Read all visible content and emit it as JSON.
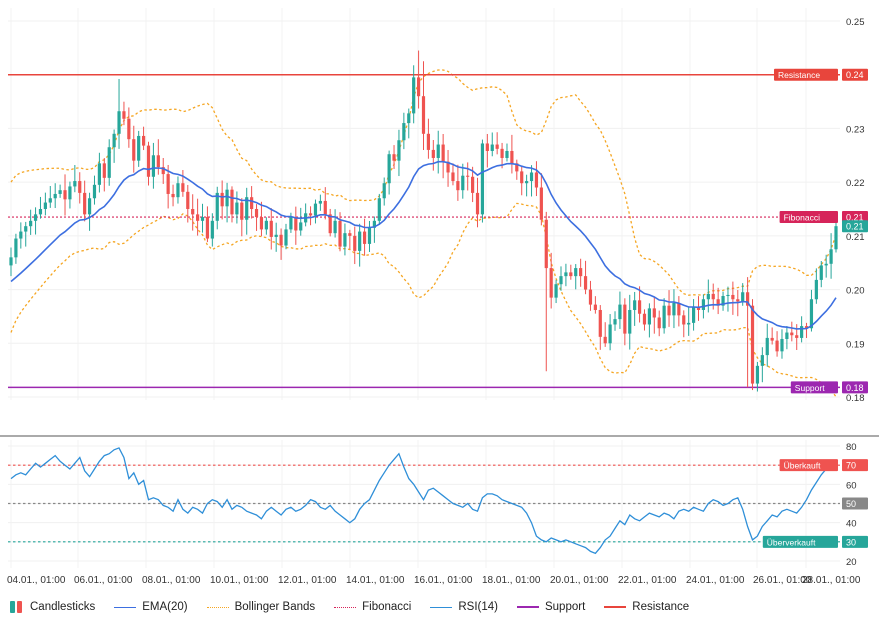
{
  "chart_data": {
    "type": "candlestick",
    "price_axis": {
      "ylim": [
        0.18,
        0.25
      ],
      "ticks": [
        "0.25",
        "0.24",
        "0.23",
        "0.22",
        "0.21",
        "0.20",
        "0.19",
        "0.18"
      ]
    },
    "rsi_axis": {
      "ylim": [
        20,
        80
      ],
      "ticks": [
        "80",
        "70",
        "60",
        "50",
        "40",
        "30",
        "20"
      ]
    },
    "x_ticks": [
      "04.01., 01:00",
      "06.01., 01:00",
      "08.01., 01:00",
      "10.01., 01:00",
      "12.01., 01:00",
      "14.01., 01:00",
      "16.01., 01:00",
      "18.01., 01:00",
      "20.01., 01:00",
      "22.01., 01:00",
      "24.01., 01:00",
      "26.01., 01:00",
      "28.01., 01:00"
    ],
    "levels": {
      "resistance": {
        "label": "Resistance",
        "value": 0.24,
        "value_text": "0.24",
        "color": "#e8453c"
      },
      "fibonacci": {
        "label": "Fibonacci",
        "value": 0.2135,
        "value_text": "0.21",
        "color": "#d6245a"
      },
      "support": {
        "label": "Support",
        "value": 0.1818,
        "value_text": "0.18",
        "color": "#9c27b0"
      },
      "last_price": {
        "value": 0.2118,
        "value_text": "0.21",
        "color": "#26a69a"
      }
    },
    "rsi_levels": {
      "overbought": {
        "label": "Überkauft",
        "value": 70,
        "value_text": "70",
        "color": "#ef5350"
      },
      "middle": {
        "value": 50,
        "value_text": "50",
        "color": "#888888"
      },
      "oversold": {
        "label": "Überverkauft",
        "value": 30,
        "value_text": "30",
        "color": "#26a69a"
      }
    },
    "colors": {
      "up": "#26a69a",
      "down": "#ef5350",
      "ema": "#3d6fe0",
      "bollinger": "#f5a623",
      "rsi": "#2f8fd8"
    },
    "series": [
      {
        "name": "Candlesticks",
        "type": "candlestick"
      },
      {
        "name": "EMA(20)",
        "type": "line"
      },
      {
        "name": "Bollinger Bands",
        "type": "line"
      },
      {
        "name": "Fibonacci",
        "type": "line"
      },
      {
        "name": "RSI(14)",
        "type": "line"
      },
      {
        "name": "Support",
        "type": "line"
      },
      {
        "name": "Resistance",
        "type": "line"
      }
    ],
    "close": [
      0.206,
      0.2095,
      0.2108,
      0.2118,
      0.2128,
      0.214,
      0.215,
      0.2162,
      0.217,
      0.2178,
      0.2185,
      0.2168,
      0.2192,
      0.2202,
      0.218,
      0.214,
      0.217,
      0.2195,
      0.2235,
      0.2208,
      0.2265,
      0.229,
      0.2332,
      0.2318,
      0.228,
      0.224,
      0.2286,
      0.2268,
      0.221,
      0.225,
      0.2228,
      0.2215,
      0.2178,
      0.2172,
      0.2198,
      0.2182,
      0.215,
      0.214,
      0.2128,
      0.2135,
      0.2095,
      0.2128,
      0.218,
      0.2155,
      0.2186,
      0.214,
      0.2162,
      0.213,
      0.2172,
      0.215,
      0.2135,
      0.2112,
      0.2128,
      0.2098,
      0.2102,
      0.2082,
      0.2112,
      0.2135,
      0.211,
      0.2125,
      0.2142,
      0.2138,
      0.216,
      0.2165,
      0.214,
      0.2105,
      0.2128,
      0.208,
      0.2105,
      0.21,
      0.2072,
      0.2108,
      0.2085,
      0.2115,
      0.2128,
      0.217,
      0.2198,
      0.2252,
      0.224,
      0.2278,
      0.231,
      0.2328,
      0.2395,
      0.236,
      0.229,
      0.226,
      0.2245,
      0.227,
      0.2238,
      0.2218,
      0.2202,
      0.2185,
      0.2212,
      0.221,
      0.218,
      0.214,
      0.2272,
      0.2258,
      0.227,
      0.2262,
      0.2245,
      0.2258,
      0.2235,
      0.222,
      0.2198,
      0.2202,
      0.2218,
      0.219,
      0.213,
      0.204,
      0.1985,
      0.201,
      0.2025,
      0.2032,
      0.2025,
      0.204,
      0.2025,
      0.2,
      0.1972,
      0.1962,
      0.1912,
      0.19,
      0.1935,
      0.1945,
      0.1972,
      0.1918,
      0.1962,
      0.198,
      0.1955,
      0.1935,
      0.1965,
      0.1948,
      0.1928,
      0.197,
      0.1952,
      0.1975,
      0.1952,
      0.1935,
      0.1938,
      0.1968,
      0.1962,
      0.1982,
      0.1992,
      0.1982,
      0.197,
      0.1988,
      0.199,
      0.1982,
      0.1978,
      0.1995,
      0.197,
      0.1825,
      0.1858,
      0.1878,
      0.191,
      0.1905,
      0.1885,
      0.1908,
      0.192,
      0.1915,
      0.191,
      0.1932,
      0.1928,
      0.1982,
      0.2018,
      0.2045,
      0.2048,
      0.2075,
      0.2118
    ],
    "rsi": [
      63,
      65,
      66,
      65,
      68,
      71,
      69,
      71,
      73,
      75,
      72,
      70,
      68,
      71,
      74,
      67,
      64,
      68,
      72,
      75,
      76,
      78,
      79,
      74,
      63,
      66,
      60,
      62,
      52,
      53,
      52,
      49,
      48,
      46,
      52,
      47,
      45,
      48,
      47,
      45,
      50,
      52,
      51,
      48,
      52,
      47,
      49,
      48,
      46,
      45,
      44,
      42,
      46,
      48,
      46,
      44,
      47,
      48,
      46,
      47,
      49,
      52,
      51,
      48,
      47,
      49,
      46,
      44,
      42,
      40,
      42,
      47,
      50,
      52,
      57,
      62,
      66,
      70,
      73,
      76,
      69,
      63,
      60,
      56,
      52,
      57,
      58,
      56,
      54,
      52,
      50,
      49,
      48,
      50,
      47,
      46,
      53,
      55,
      55,
      54,
      52,
      51,
      50,
      49,
      48,
      45,
      40,
      33,
      31,
      30,
      32,
      31,
      30,
      31,
      30,
      29,
      28,
      27,
      25,
      24,
      27,
      31,
      33,
      37,
      41,
      39,
      44,
      42,
      41,
      43,
      45,
      44,
      43,
      45,
      44,
      42,
      46,
      47,
      46,
      48,
      47,
      46,
      50,
      52,
      51,
      49,
      50,
      52,
      53,
      47,
      38,
      31,
      33,
      38,
      41,
      44,
      43,
      46,
      47,
      46,
      45,
      48,
      52,
      57,
      61,
      65,
      68,
      70,
      72
    ]
  },
  "legend": [
    {
      "label": "Candlesticks",
      "kind": "candle"
    },
    {
      "label": "EMA(20)",
      "kind": "line",
      "color": "#3d6fe0"
    },
    {
      "label": "Bollinger Bands",
      "kind": "dotted",
      "color": "#f5a623"
    },
    {
      "label": "Fibonacci",
      "kind": "dotted",
      "color": "#d6245a"
    },
    {
      "label": "RSI(14)",
      "kind": "line",
      "color": "#2f8fd8"
    },
    {
      "label": "Support",
      "kind": "line",
      "color": "#9c27b0"
    },
    {
      "label": "Resistance",
      "kind": "line",
      "color": "#e8453c"
    }
  ]
}
